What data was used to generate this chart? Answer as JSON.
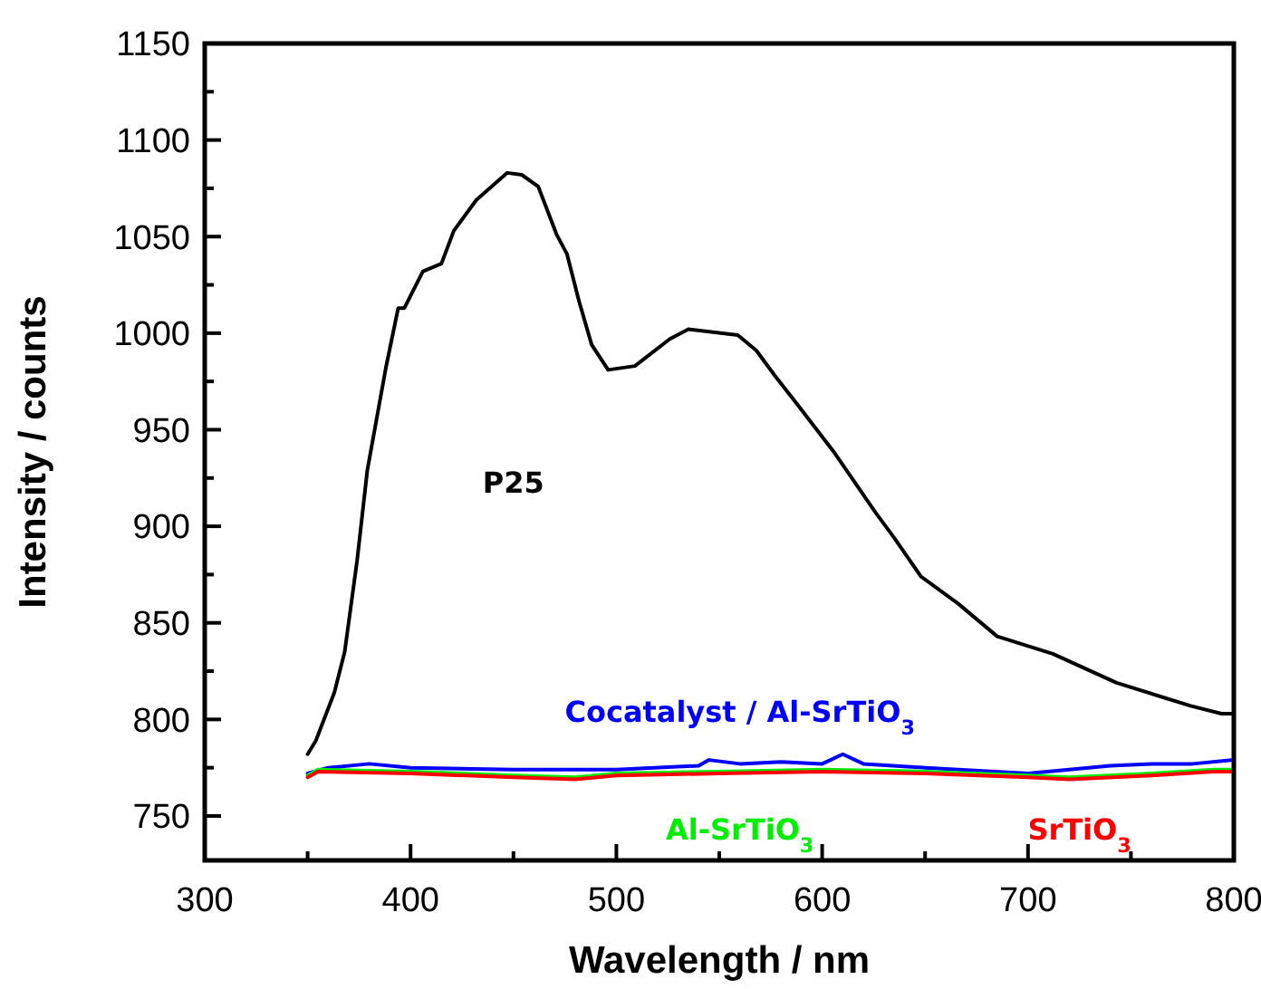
{
  "chart_data": {
    "type": "line",
    "xlabel": "Wavelength / nm",
    "ylabel": "Intensity / counts",
    "xlim": [
      300,
      800
    ],
    "ylim": [
      727,
      1150
    ],
    "xticks": [
      300,
      {
        "value": 350,
        "label": null
      },
      400,
      {
        "value": 450,
        "label": null
      },
      500,
      {
        "value": 550,
        "label": null
      },
      600,
      {
        "value": 650,
        "label": null
      },
      700,
      {
        "value": 750,
        "label": null
      },
      800
    ],
    "yticks": [
      750,
      {
        "value": 775,
        "label": null
      },
      800,
      {
        "value": 825,
        "label": null
      },
      850,
      {
        "value": 875,
        "label": null
      },
      900,
      {
        "value": 925,
        "label": null
      },
      950,
      {
        "value": 975,
        "label": null
      },
      1000,
      {
        "value": 1025,
        "label": null
      },
      1050,
      {
        "value": 1075,
        "label": null
      },
      1100,
      {
        "value": 1125,
        "label": null
      },
      1150
    ],
    "grid": false,
    "marker": "none",
    "line_style": "solid",
    "series": [
      {
        "name": "P25",
        "color": "#000000",
        "x": [
          350,
          354,
          363,
          368,
          374,
          379,
          388,
          394,
          397,
          406,
          415,
          421,
          432,
          447,
          454,
          462,
          471,
          476,
          482,
          488,
          496,
          509,
          526,
          535,
          559,
          568,
          577,
          588,
          606,
          626,
          635,
          648,
          666,
          685,
          712,
          743,
          779,
          794,
          800
        ],
        "values": [
          782,
          789,
          814,
          835,
          882,
          929,
          982,
          1013,
          1013,
          1032,
          1036,
          1053,
          1069,
          1083,
          1082,
          1076,
          1051,
          1041,
          1016,
          994,
          981,
          983,
          997,
          1002,
          999,
          991,
          978,
          963,
          938,
          907,
          894,
          874,
          860,
          843,
          834,
          819,
          807,
          803,
          803
        ]
      },
      {
        "name": "Cocatalyst / Al-SrTiO$_{3}$",
        "color": "#0000ff",
        "x": [
          350,
          360,
          380,
          400,
          450,
          500,
          540,
          545,
          560,
          580,
          600,
          610,
          620,
          650,
          700,
          720,
          740,
          760,
          780,
          800
        ],
        "values": [
          772,
          775,
          777,
          775,
          774,
          774,
          776,
          779,
          777,
          778,
          777,
          782,
          777,
          775,
          772,
          774,
          776,
          777,
          777,
          779
        ]
      },
      {
        "name": "Al-SrTiO$_{3}$",
        "color": "#00ee00",
        "x": [
          350,
          355,
          400,
          450,
          480,
          500,
          550,
          600,
          650,
          700,
          720,
          760,
          790,
          800
        ],
        "values": [
          771,
          774,
          773,
          771,
          770,
          772,
          773,
          774,
          773,
          771,
          770,
          772,
          774,
          774
        ]
      },
      {
        "name": "SrTiO$_{3}$",
        "color": "#ff0000",
        "x": [
          350,
          355,
          400,
          450,
          480,
          500,
          550,
          600,
          650,
          700,
          720,
          760,
          790,
          800
        ],
        "values": [
          770,
          773,
          772,
          770,
          769,
          771,
          772,
          773,
          772,
          770,
          769,
          771,
          773,
          773
        ]
      }
    ]
  }
}
